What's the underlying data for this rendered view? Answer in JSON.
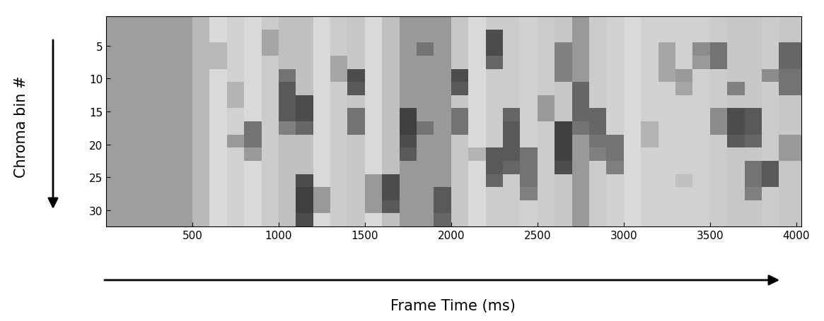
{
  "chart_data": {
    "type": "heatmap",
    "xlabel": "Frame Time (ms)",
    "ylabel": "Chroma bin #",
    "xlim": [
      0,
      4030
    ],
    "ylim": [
      32.5,
      0.5
    ],
    "xticks": [
      500,
      1000,
      1500,
      2000,
      2500,
      3000,
      3500,
      4000
    ],
    "yticks": [
      5,
      10,
      15,
      20,
      25,
      30
    ],
    "value_range": [
      0,
      1
    ],
    "x_edges": [
      0,
      100,
      200,
      300,
      400,
      500,
      600,
      700,
      800,
      900,
      1000,
      1100,
      1200,
      1300,
      1400,
      1500,
      1600,
      1700,
      1800,
      1900,
      2000,
      2100,
      2200,
      2300,
      2400,
      2500,
      2600,
      2700,
      2800,
      2900,
      3000,
      3100,
      3200,
      3300,
      3400,
      3500,
      3600,
      3700,
      3800,
      3900,
      4030
    ],
    "y_edges": [
      0.5,
      2.5,
      4.5,
      6.5,
      8.5,
      10.5,
      12.5,
      14.5,
      16.5,
      18.5,
      20.5,
      22.5,
      24.5,
      26.5,
      28.5,
      30.5,
      32.5
    ],
    "cells": [
      [
        0.62,
        0.62,
        0.62,
        0.62,
        0.62,
        0.72,
        0.85,
        0.82,
        0.85,
        0.8,
        0.75,
        0.75,
        0.85,
        0.8,
        0.78,
        0.85,
        0.75,
        0.6,
        0.6,
        0.6,
        0.78,
        0.85,
        0.8,
        0.8,
        0.82,
        0.8,
        0.78,
        0.6,
        0.8,
        0.82,
        0.85,
        0.82,
        0.82,
        0.82,
        0.82,
        0.8,
        0.78,
        0.78,
        0.8,
        0.78
      ],
      [
        0.62,
        0.62,
        0.62,
        0.62,
        0.62,
        0.72,
        0.85,
        0.82,
        0.85,
        0.65,
        0.75,
        0.75,
        0.85,
        0.8,
        0.78,
        0.85,
        0.75,
        0.6,
        0.6,
        0.6,
        0.78,
        0.85,
        0.3,
        0.8,
        0.82,
        0.8,
        0.78,
        0.6,
        0.8,
        0.82,
        0.85,
        0.82,
        0.82,
        0.82,
        0.82,
        0.8,
        0.78,
        0.78,
        0.8,
        0.78
      ],
      [
        0.62,
        0.62,
        0.62,
        0.62,
        0.62,
        0.72,
        0.72,
        0.82,
        0.85,
        0.65,
        0.75,
        0.75,
        0.85,
        0.8,
        0.78,
        0.85,
        0.75,
        0.6,
        0.45,
        0.6,
        0.78,
        0.85,
        0.3,
        0.8,
        0.82,
        0.8,
        0.5,
        0.6,
        0.8,
        0.82,
        0.85,
        0.82,
        0.65,
        0.82,
        0.55,
        0.45,
        0.78,
        0.78,
        0.8,
        0.4
      ],
      [
        0.62,
        0.62,
        0.62,
        0.62,
        0.62,
        0.72,
        0.72,
        0.82,
        0.85,
        0.8,
        0.75,
        0.75,
        0.85,
        0.65,
        0.78,
        0.85,
        0.75,
        0.6,
        0.6,
        0.6,
        0.78,
        0.85,
        0.4,
        0.8,
        0.82,
        0.8,
        0.5,
        0.6,
        0.8,
        0.82,
        0.85,
        0.82,
        0.65,
        0.82,
        0.6,
        0.45,
        0.78,
        0.78,
        0.8,
        0.4
      ],
      [
        0.62,
        0.62,
        0.62,
        0.62,
        0.62,
        0.72,
        0.85,
        0.82,
        0.85,
        0.8,
        0.45,
        0.75,
        0.85,
        0.65,
        0.3,
        0.85,
        0.75,
        0.6,
        0.6,
        0.6,
        0.3,
        0.85,
        0.8,
        0.8,
        0.82,
        0.8,
        0.5,
        0.6,
        0.8,
        0.82,
        0.85,
        0.82,
        0.65,
        0.6,
        0.82,
        0.8,
        0.78,
        0.78,
        0.55,
        0.45
      ],
      [
        0.62,
        0.62,
        0.62,
        0.62,
        0.62,
        0.72,
        0.85,
        0.7,
        0.85,
        0.8,
        0.35,
        0.75,
        0.85,
        0.8,
        0.35,
        0.85,
        0.75,
        0.6,
        0.6,
        0.6,
        0.35,
        0.85,
        0.8,
        0.8,
        0.82,
        0.8,
        0.78,
        0.4,
        0.8,
        0.82,
        0.85,
        0.82,
        0.82,
        0.65,
        0.82,
        0.8,
        0.5,
        0.78,
        0.8,
        0.45
      ],
      [
        0.62,
        0.62,
        0.62,
        0.62,
        0.62,
        0.72,
        0.85,
        0.7,
        0.85,
        0.8,
        0.35,
        0.3,
        0.85,
        0.8,
        0.78,
        0.85,
        0.75,
        0.6,
        0.6,
        0.6,
        0.78,
        0.85,
        0.8,
        0.8,
        0.82,
        0.6,
        0.78,
        0.4,
        0.8,
        0.82,
        0.85,
        0.82,
        0.82,
        0.82,
        0.82,
        0.8,
        0.78,
        0.78,
        0.8,
        0.78
      ],
      [
        0.62,
        0.62,
        0.62,
        0.62,
        0.62,
        0.72,
        0.85,
        0.82,
        0.85,
        0.8,
        0.35,
        0.3,
        0.85,
        0.8,
        0.45,
        0.85,
        0.75,
        0.25,
        0.6,
        0.6,
        0.45,
        0.85,
        0.8,
        0.4,
        0.82,
        0.6,
        0.78,
        0.4,
        0.4,
        0.82,
        0.85,
        0.82,
        0.82,
        0.82,
        0.82,
        0.55,
        0.3,
        0.35,
        0.8,
        0.78
      ],
      [
        0.62,
        0.62,
        0.62,
        0.62,
        0.62,
        0.72,
        0.85,
        0.82,
        0.45,
        0.8,
        0.5,
        0.4,
        0.85,
        0.8,
        0.45,
        0.85,
        0.75,
        0.25,
        0.45,
        0.6,
        0.45,
        0.85,
        0.8,
        0.35,
        0.82,
        0.8,
        0.25,
        0.45,
        0.4,
        0.82,
        0.85,
        0.7,
        0.82,
        0.82,
        0.82,
        0.55,
        0.3,
        0.35,
        0.8,
        0.78
      ],
      [
        0.62,
        0.62,
        0.62,
        0.62,
        0.62,
        0.72,
        0.85,
        0.6,
        0.45,
        0.8,
        0.75,
        0.75,
        0.85,
        0.8,
        0.78,
        0.85,
        0.75,
        0.3,
        0.6,
        0.6,
        0.78,
        0.85,
        0.8,
        0.35,
        0.82,
        0.8,
        0.25,
        0.6,
        0.45,
        0.45,
        0.85,
        0.7,
        0.82,
        0.82,
        0.82,
        0.8,
        0.35,
        0.4,
        0.8,
        0.6
      ],
      [
        0.62,
        0.62,
        0.62,
        0.62,
        0.62,
        0.72,
        0.85,
        0.82,
        0.6,
        0.8,
        0.75,
        0.75,
        0.85,
        0.8,
        0.78,
        0.85,
        0.75,
        0.35,
        0.6,
        0.6,
        0.78,
        0.7,
        0.35,
        0.35,
        0.45,
        0.8,
        0.25,
        0.6,
        0.5,
        0.45,
        0.85,
        0.82,
        0.82,
        0.82,
        0.82,
        0.8,
        0.78,
        0.78,
        0.8,
        0.6
      ],
      [
        0.62,
        0.62,
        0.62,
        0.62,
        0.62,
        0.72,
        0.85,
        0.82,
        0.85,
        0.8,
        0.75,
        0.75,
        0.85,
        0.8,
        0.78,
        0.85,
        0.75,
        0.6,
        0.6,
        0.6,
        0.78,
        0.85,
        0.35,
        0.4,
        0.45,
        0.8,
        0.3,
        0.6,
        0.8,
        0.5,
        0.85,
        0.82,
        0.82,
        0.82,
        0.82,
        0.8,
        0.78,
        0.45,
        0.35,
        0.78
      ],
      [
        0.62,
        0.62,
        0.62,
        0.62,
        0.62,
        0.72,
        0.85,
        0.82,
        0.85,
        0.8,
        0.75,
        0.3,
        0.85,
        0.8,
        0.78,
        0.6,
        0.3,
        0.6,
        0.6,
        0.6,
        0.78,
        0.85,
        0.4,
        0.8,
        0.45,
        0.8,
        0.78,
        0.6,
        0.8,
        0.82,
        0.85,
        0.82,
        0.82,
        0.75,
        0.82,
        0.8,
        0.78,
        0.45,
        0.35,
        0.78
      ],
      [
        0.62,
        0.62,
        0.62,
        0.62,
        0.62,
        0.72,
        0.85,
        0.82,
        0.85,
        0.8,
        0.75,
        0.25,
        0.6,
        0.8,
        0.78,
        0.6,
        0.3,
        0.6,
        0.6,
        0.35,
        0.78,
        0.85,
        0.8,
        0.8,
        0.5,
        0.8,
        0.78,
        0.6,
        0.8,
        0.82,
        0.85,
        0.82,
        0.82,
        0.82,
        0.82,
        0.8,
        0.78,
        0.5,
        0.8,
        0.78
      ],
      [
        0.62,
        0.62,
        0.62,
        0.62,
        0.62,
        0.72,
        0.85,
        0.82,
        0.85,
        0.8,
        0.75,
        0.25,
        0.6,
        0.8,
        0.78,
        0.6,
        0.35,
        0.6,
        0.6,
        0.35,
        0.78,
        0.85,
        0.8,
        0.8,
        0.82,
        0.8,
        0.78,
        0.6,
        0.8,
        0.82,
        0.85,
        0.82,
        0.82,
        0.82,
        0.82,
        0.8,
        0.78,
        0.78,
        0.8,
        0.78
      ],
      [
        0.62,
        0.62,
        0.62,
        0.62,
        0.62,
        0.72,
        0.85,
        0.82,
        0.85,
        0.8,
        0.75,
        0.3,
        0.85,
        0.8,
        0.78,
        0.85,
        0.75,
        0.6,
        0.6,
        0.4,
        0.78,
        0.85,
        0.8,
        0.8,
        0.82,
        0.8,
        0.78,
        0.6,
        0.8,
        0.82,
        0.85,
        0.82,
        0.82,
        0.82,
        0.82,
        0.8,
        0.78,
        0.78,
        0.8,
        0.78
      ]
    ]
  }
}
